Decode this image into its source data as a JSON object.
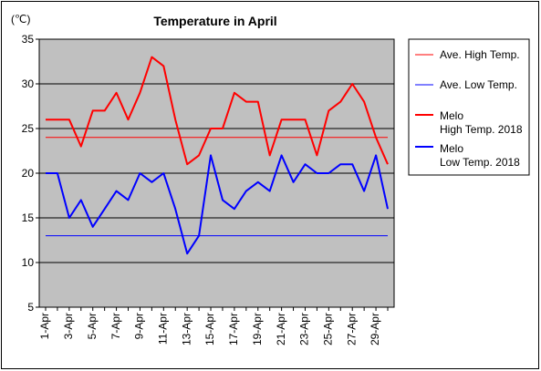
{
  "chart_data": {
    "type": "line",
    "title": "Temperature in April",
    "unit_label": "(℃)",
    "ylim": [
      5,
      35
    ],
    "yticks": [
      5,
      10,
      15,
      20,
      25,
      30,
      35
    ],
    "x": [
      1,
      2,
      3,
      4,
      5,
      6,
      7,
      8,
      9,
      10,
      11,
      12,
      13,
      14,
      15,
      16,
      17,
      18,
      19,
      20,
      21,
      22,
      23,
      24,
      25,
      26,
      27,
      28,
      29,
      30
    ],
    "xtick_labels": [
      "1-Apr",
      "3-Apr",
      "5-Apr",
      "7-Apr",
      "9-Apr",
      "11-Apr",
      "13-Apr",
      "15-Apr",
      "17-Apr",
      "19-Apr",
      "21-Apr",
      "23-Apr",
      "25-Apr",
      "27-Apr",
      "29-Apr"
    ],
    "xtick_days": [
      1,
      3,
      5,
      7,
      9,
      11,
      13,
      15,
      17,
      19,
      21,
      23,
      25,
      27,
      29
    ],
    "grid": true,
    "legend_position": "right",
    "series": [
      {
        "name": "Ave. High Temp.",
        "color": "#ff0000",
        "style": "thin",
        "values": [
          24,
          24,
          24,
          24,
          24,
          24,
          24,
          24,
          24,
          24,
          24,
          24,
          24,
          24,
          24,
          24,
          24,
          24,
          24,
          24,
          24,
          24,
          24,
          24,
          24,
          24,
          24,
          24,
          24,
          24
        ]
      },
      {
        "name": "Ave. Low Temp.",
        "color": "#0000ff",
        "style": "thin",
        "values": [
          13,
          13,
          13,
          13,
          13,
          13,
          13,
          13,
          13,
          13,
          13,
          13,
          13,
          13,
          13,
          13,
          13,
          13,
          13,
          13,
          13,
          13,
          13,
          13,
          13,
          13,
          13,
          13,
          13,
          13
        ]
      },
      {
        "name": "Melo\nHigh Temp. 2018",
        "color": "#ff0000",
        "style": "thick",
        "values": [
          26,
          26,
          26,
          23,
          27,
          27,
          29,
          26,
          29,
          33,
          32,
          26,
          21,
          22,
          25,
          25,
          29,
          28,
          28,
          22,
          26,
          26,
          26,
          22,
          27,
          28,
          30,
          28,
          24,
          21
        ]
      },
      {
        "name": "Melo\nLow Temp. 2018",
        "color": "#0000ff",
        "style": "thick",
        "values": [
          20,
          20,
          15,
          17,
          14,
          16,
          18,
          17,
          20,
          19,
          20,
          16,
          11,
          13,
          22,
          17,
          16,
          18,
          19,
          18,
          22,
          19,
          21,
          20,
          20,
          21,
          21,
          18,
          22,
          16
        ]
      }
    ]
  },
  "legend": [
    {
      "lines": [
        "Ave. High Temp."
      ]
    },
    {
      "lines": [
        "Ave. Low Temp."
      ]
    },
    {
      "lines": [
        "Melo",
        "High Temp. 2018"
      ]
    },
    {
      "lines": [
        "Melo",
        "Low Temp. 2018"
      ]
    }
  ]
}
